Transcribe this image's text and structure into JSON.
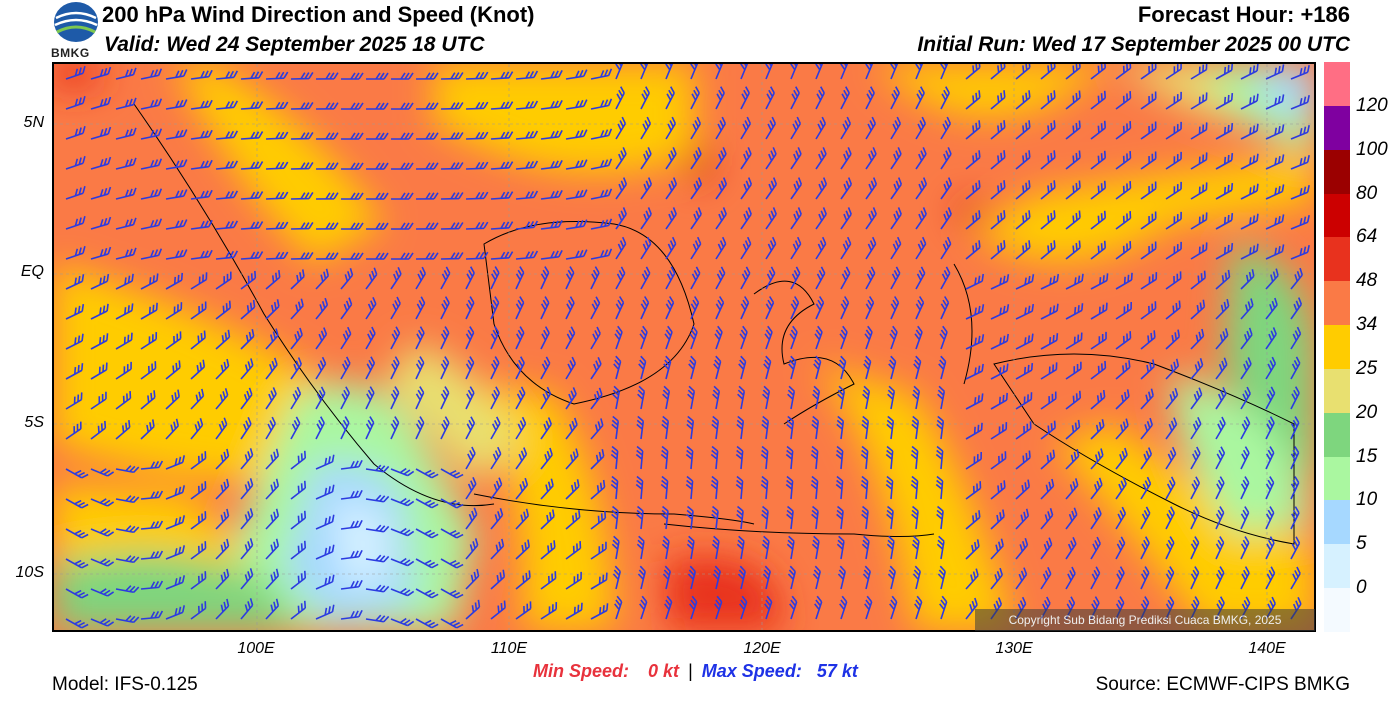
{
  "header": {
    "title": "200 hPa Wind Direction and Speed (Knot)",
    "valid": "Valid: Wed 24 September 2025 18 UTC",
    "forecast_hour": "Forecast Hour: +186",
    "initial_run": "Initial Run: Wed 17 September 2025 00 UTC"
  },
  "logo": {
    "text": "BMKG",
    "icon": "bmkg-logo-icon"
  },
  "map": {
    "lat_labels": [
      "5N",
      "EQ",
      "5S",
      "10S"
    ],
    "lon_labels": [
      "100E",
      "110E",
      "120E",
      "130E",
      "140E"
    ],
    "lat_range": [
      -12,
      7
    ],
    "lon_range": [
      92,
      142
    ]
  },
  "legend": {
    "labels": [
      "120",
      "100",
      "80",
      "64",
      "48",
      "34",
      "25",
      "20",
      "15",
      "10",
      "5",
      "0"
    ],
    "colors": [
      "#ff6e84",
      "#7f00a0",
      "#9b0000",
      "#cc0000",
      "#e8321e",
      "#fa7a46",
      "#ffcc00",
      "#e8e070",
      "#7ed67e",
      "#aaf7a0",
      "#a6d8ff",
      "#d6f1ff",
      "#f4faff"
    ]
  },
  "stats": {
    "min_label": "Min Speed:",
    "min_value": "0 kt",
    "separator": "|",
    "max_label": "Max Speed:",
    "max_value": "57 kt",
    "min_color": "#e8323c",
    "max_color": "#1e32e6"
  },
  "footer": {
    "model": "Model: IFS-0.125",
    "source": "Source: ECMWF-CIPS BMKG",
    "copyright": "Copyright Sub Bidang Prediksi Cuaca BMKG, 2025"
  }
}
